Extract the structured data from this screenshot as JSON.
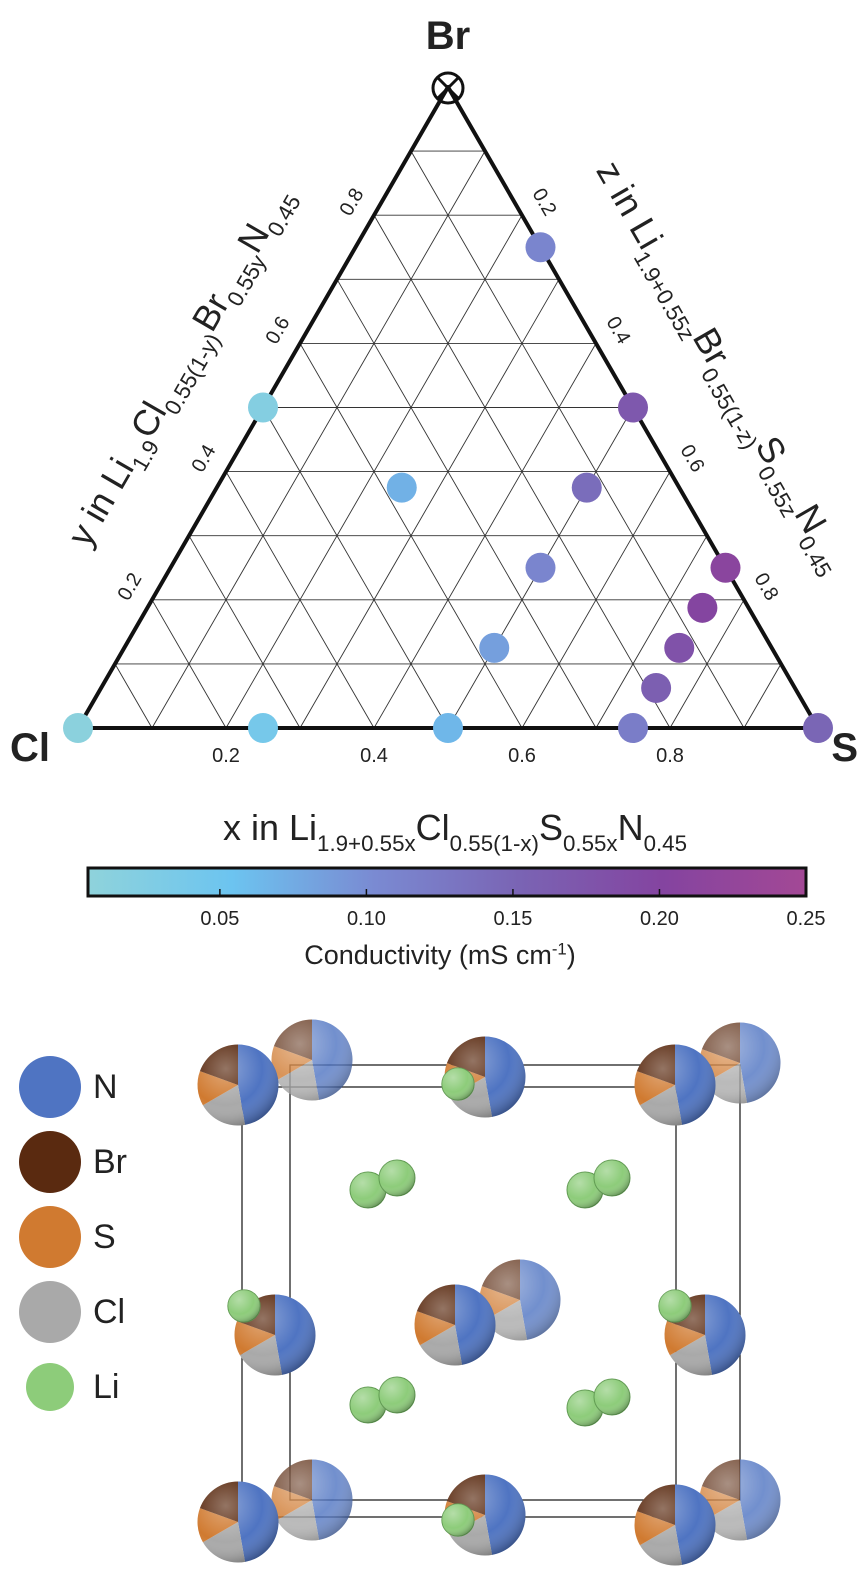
{
  "chart_data": {
    "type": "ternary",
    "corners": {
      "top": "Br",
      "left": "Cl",
      "right": "S"
    },
    "xlabel": [
      "x in Li",
      "1.9+0.55x",
      "Cl",
      "0.55(1-x)",
      "S",
      "0.55x",
      "N",
      "0.45"
    ],
    "ylabel": [
      "y in Li",
      "1.9",
      "Cl",
      "0.55(1-y)",
      "Br",
      "0.55y",
      "N",
      "0.45"
    ],
    "zlabel": [
      "z in Li",
      "1.9+0.55z",
      "Br",
      "0.55(1-z)",
      "S",
      "0.55z",
      "N",
      "0.45"
    ],
    "xticks": [
      0.2,
      0.4,
      0.6,
      0.8
    ],
    "yticks": [
      0.2,
      0.4,
      0.6,
      0.8
    ],
    "zticks": [
      0.2,
      0.4,
      0.6,
      0.8
    ],
    "grid": [
      0.1,
      0.2,
      0.3,
      0.4,
      0.5,
      0.6,
      0.7,
      0.8,
      0.9
    ],
    "points": {
      "x": [
        0,
        0.25,
        0.5,
        0.75,
        1,
        0,
        0.25,
        0.5,
        0.75,
        0.25,
        0.5,
        0.5,
        0.5,
        0.75,
        0.75,
        0.75
      ],
      "y": [
        0,
        0,
        0,
        0,
        0,
        0.5,
        0.75,
        0.5,
        0.25,
        0.375,
        0.375,
        0.25,
        0.125,
        0.1875,
        0.125,
        0.0625
      ],
      "values": [
        0.01,
        0.04,
        0.065,
        0.12,
        0.15,
        0.02,
        0.11,
        0.17,
        0.21,
        0.07,
        0.14,
        0.11,
        0.085,
        0.2,
        0.18,
        0.16
      ]
    },
    "colorbar": {
      "label": [
        "Conductivity (mS cm",
        "-1",
        ")"
      ],
      "clim": [
        0.005,
        0.25
      ],
      "ticks": [
        0.05,
        {
          "value": 0.1,
          "label": "0.10"
        },
        0.15,
        {
          "value": 0.2,
          "label": "0.20"
        },
        0.25
      ],
      "colors": [
        "#8fd3db",
        "#6cc4f0",
        "#7a8ad2",
        "#7a64b4",
        "#8444a0",
        "#a34895"
      ]
    }
  },
  "structure": {
    "legend": [
      {
        "label": "N",
        "color": "#4f74c2"
      },
      {
        "label": "Br",
        "color": "#5a2a10"
      },
      {
        "label": "S",
        "color": "#d07a30"
      },
      {
        "label": "Cl",
        "color": "#a9a9a9"
      },
      {
        "label": "Li",
        "color": "#8dcc7a"
      }
    ]
  }
}
